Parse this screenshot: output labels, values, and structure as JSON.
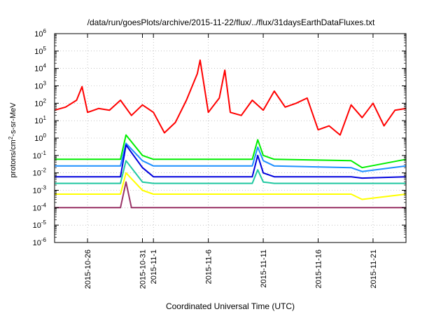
{
  "chart_data": {
    "type": "line",
    "title": "/data/run/goesPlots/archive/2015-11-22/flux/../flux/31daysEarthDataFluxes.txt",
    "xlabel": "Coordinated Universal Time (UTC)",
    "ylabel_main": "protons/cm",
    "ylabel_sup": "2",
    "ylabel_tail": "-s-sr-MeV",
    "yscale": "log",
    "ylim_exp": [
      -6,
      6
    ],
    "y_ticks": [
      {
        "base": "10",
        "exp": "-6"
      },
      {
        "base": "10",
        "exp": "-5"
      },
      {
        "base": "10",
        "exp": "-4"
      },
      {
        "base": "10",
        "exp": "-3"
      },
      {
        "base": "10",
        "exp": "-2"
      },
      {
        "base": "10",
        "exp": "-1"
      },
      {
        "base": "10",
        "exp": "0"
      },
      {
        "base": "10",
        "exp": "1"
      },
      {
        "base": "10",
        "exp": "2"
      },
      {
        "base": "10",
        "exp": "3"
      },
      {
        "base": "10",
        "exp": "4"
      },
      {
        "base": "10",
        "exp": "5"
      },
      {
        "base": "10",
        "exp": "6"
      }
    ],
    "xlim": [
      "2015-10-23",
      "2015-11-24"
    ],
    "x_ticks": [
      "2015-10-26",
      "2015-10-31",
      "2015-11-1",
      "2015-11-6",
      "2015-11-11",
      "2015-11-16",
      "2015-11-21"
    ],
    "x_tick_dates": [
      "2015-10-26",
      "2015-10-31",
      "2015-11-01",
      "2015-11-06",
      "2015-11-11",
      "2015-11-16",
      "2015-11-21"
    ],
    "grid": true,
    "legend": "none",
    "series": [
      {
        "color": "#ff0000",
        "points": [
          [
            "2015-10-23",
            40
          ],
          [
            "2015-10-24",
            60
          ],
          [
            "2015-10-25",
            150
          ],
          [
            "2015-10-25T12",
            900
          ],
          [
            "2015-10-26",
            30
          ],
          [
            "2015-10-27",
            50
          ],
          [
            "2015-10-28",
            40
          ],
          [
            "2015-10-29",
            150
          ],
          [
            "2015-10-30",
            20
          ],
          [
            "2015-10-31",
            80
          ],
          [
            "2015-11-01",
            30
          ],
          [
            "2015-11-02",
            2
          ],
          [
            "2015-11-03",
            8
          ],
          [
            "2015-11-04",
            150
          ],
          [
            "2015-11-05",
            5000
          ],
          [
            "2015-11-05T06",
            30000
          ],
          [
            "2015-11-06",
            30
          ],
          [
            "2015-11-07",
            200
          ],
          [
            "2015-11-07T12",
            8000
          ],
          [
            "2015-11-08",
            30
          ],
          [
            "2015-11-09",
            20
          ],
          [
            "2015-11-10",
            150
          ],
          [
            "2015-11-11",
            40
          ],
          [
            "2015-11-12",
            500
          ],
          [
            "2015-11-13",
            60
          ],
          [
            "2015-11-14",
            100
          ],
          [
            "2015-11-15",
            200
          ],
          [
            "2015-11-16",
            3
          ],
          [
            "2015-11-17",
            5
          ],
          [
            "2015-11-18",
            1.5
          ],
          [
            "2015-11-19",
            80
          ],
          [
            "2015-11-20",
            15
          ],
          [
            "2015-11-21",
            100
          ],
          [
            "2015-11-22",
            5
          ],
          [
            "2015-11-23",
            40
          ],
          [
            "2015-11-24",
            50
          ]
        ]
      },
      {
        "color": "#00ee00",
        "points": [
          [
            "2015-10-23",
            0.06
          ],
          [
            "2015-10-29",
            0.06
          ],
          [
            "2015-10-29T12",
            1.5
          ],
          [
            "2015-10-31",
            0.1
          ],
          [
            "2015-11-01",
            0.06
          ],
          [
            "2015-11-10",
            0.06
          ],
          [
            "2015-11-10T12",
            0.8
          ],
          [
            "2015-11-11",
            0.1
          ],
          [
            "2015-11-12",
            0.06
          ],
          [
            "2015-11-19",
            0.05
          ],
          [
            "2015-11-20",
            0.02
          ],
          [
            "2015-11-24",
            0.06
          ]
        ]
      },
      {
        "color": "#1e90ff",
        "points": [
          [
            "2015-10-23",
            0.025
          ],
          [
            "2015-10-29",
            0.025
          ],
          [
            "2015-10-29T12",
            0.5
          ],
          [
            "2015-10-31",
            0.05
          ],
          [
            "2015-11-01",
            0.025
          ],
          [
            "2015-11-10",
            0.025
          ],
          [
            "2015-11-10T12",
            0.3
          ],
          [
            "2015-11-11",
            0.05
          ],
          [
            "2015-11-12",
            0.025
          ],
          [
            "2015-11-19",
            0.02
          ],
          [
            "2015-11-20",
            0.012
          ],
          [
            "2015-11-24",
            0.025
          ]
        ]
      },
      {
        "color": "#0000dd",
        "points": [
          [
            "2015-10-23",
            0.006
          ],
          [
            "2015-10-29",
            0.006
          ],
          [
            "2015-10-29T12",
            0.4
          ],
          [
            "2015-10-31",
            0.02
          ],
          [
            "2015-11-01",
            0.006
          ],
          [
            "2015-11-10",
            0.006
          ],
          [
            "2015-11-10T12",
            0.1
          ],
          [
            "2015-11-11",
            0.01
          ],
          [
            "2015-11-12",
            0.006
          ],
          [
            "2015-11-19",
            0.006
          ],
          [
            "2015-11-20",
            0.005
          ],
          [
            "2015-11-24",
            0.006
          ]
        ]
      },
      {
        "color": "#20c8a0",
        "points": [
          [
            "2015-10-23",
            0.0025
          ],
          [
            "2015-10-29",
            0.0025
          ],
          [
            "2015-10-29T12",
            0.05
          ],
          [
            "2015-10-31",
            0.003
          ],
          [
            "2015-11-01",
            0.0025
          ],
          [
            "2015-11-10",
            0.0025
          ],
          [
            "2015-11-10T12",
            0.015
          ],
          [
            "2015-11-11",
            0.003
          ],
          [
            "2015-11-12",
            0.0025
          ],
          [
            "2015-11-24",
            0.0025
          ]
        ]
      },
      {
        "color": "#ffff00",
        "points": [
          [
            "2015-10-23",
            0.0006
          ],
          [
            "2015-10-29",
            0.0006
          ],
          [
            "2015-10-29T12",
            0.01
          ],
          [
            "2015-10-31",
            0.001
          ],
          [
            "2015-11-01",
            0.0006
          ],
          [
            "2015-11-19",
            0.0006
          ],
          [
            "2015-11-20",
            0.0003
          ],
          [
            "2015-11-24",
            0.0006
          ]
        ]
      },
      {
        "color": "#993366",
        "points": [
          [
            "2015-10-23",
            0.0001
          ],
          [
            "2015-10-29",
            0.0001
          ],
          [
            "2015-10-29T12",
            0.003
          ],
          [
            "2015-10-30",
            0.0001
          ],
          [
            "2015-11-19",
            0.0001
          ],
          [
            "2015-11-24",
            0.0001
          ]
        ]
      }
    ]
  }
}
